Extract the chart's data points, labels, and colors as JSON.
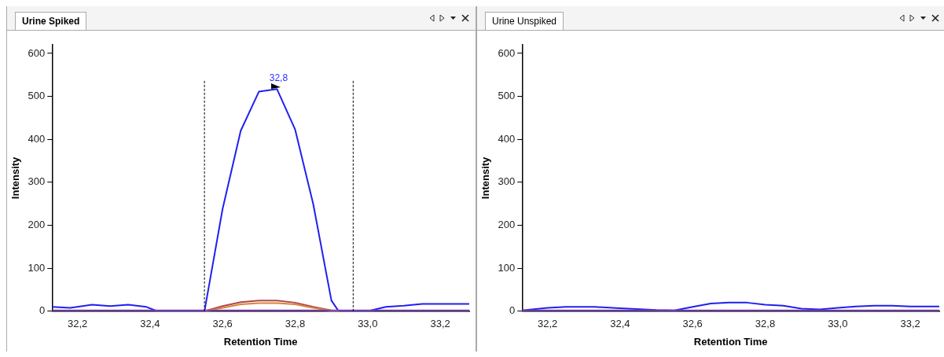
{
  "chart_data": [
    {
      "type": "line",
      "title": "Urine Spiked",
      "xlabel": "Retention Time",
      "ylabel": "Intensity",
      "xlim": [
        32.13,
        33.28
      ],
      "ylim": [
        0,
        620
      ],
      "xticks": [
        {
          "value": 32.2,
          "label": "32,2"
        },
        {
          "value": 32.4,
          "label": "32,4"
        },
        {
          "value": 32.6,
          "label": "32,6"
        },
        {
          "value": 32.8,
          "label": "32,8"
        },
        {
          "value": 33.0,
          "label": "33,0"
        },
        {
          "value": 33.2,
          "label": "33,2"
        }
      ],
      "yticks": [
        0,
        100,
        200,
        300,
        400,
        500,
        600
      ],
      "series": [
        {
          "color": "#8040c0",
          "x": [
            32.13,
            32.55,
            32.9,
            33.28
          ],
          "values": [
            2,
            2,
            2,
            2
          ]
        },
        {
          "color": "#d8843c",
          "x": [
            32.55,
            32.6,
            32.65,
            32.7,
            32.75,
            32.8,
            32.85,
            32.9,
            32.92
          ],
          "values": [
            0,
            8,
            16,
            19,
            19,
            16,
            8,
            1,
            0
          ]
        },
        {
          "color": "#b04848",
          "x": [
            32.55,
            32.6,
            32.65,
            32.7,
            32.75,
            32.8,
            32.85,
            32.9,
            32.92
          ],
          "values": [
            0,
            12,
            21,
            25,
            25,
            20,
            10,
            2,
            0
          ]
        },
        {
          "color": "#2020f0",
          "x": [
            32.13,
            32.18,
            32.24,
            32.29,
            32.34,
            32.39,
            32.42,
            32.55,
            32.6,
            32.65,
            32.7,
            32.75,
            32.8,
            32.85,
            32.9,
            32.92,
            33.0,
            33.05,
            33.1,
            33.15,
            33.28
          ],
          "values": [
            10,
            8,
            15,
            12,
            15,
            10,
            0,
            0,
            238,
            420,
            511,
            517,
            423,
            249,
            25,
            0,
            0,
            10,
            13,
            17,
            17
          ]
        }
      ],
      "ref_lines": [
        {
          "axis": "x",
          "value": 32.55,
          "line_style": "dashed",
          "color": "#000000"
        },
        {
          "axis": "x",
          "value": 32.96,
          "line_style": "dashed",
          "color": "#000000"
        }
      ],
      "annotations": [
        {
          "text": "32,8",
          "x": 32.75,
          "y": 517
        }
      ]
    },
    {
      "type": "line",
      "title": "Urine Unspiked",
      "xlabel": "Retention Time",
      "ylabel": "Intensity",
      "xlim": [
        32.13,
        33.28
      ],
      "ylim": [
        0,
        620
      ],
      "xticks": [
        {
          "value": 32.2,
          "label": "32,2"
        },
        {
          "value": 32.4,
          "label": "32,4"
        },
        {
          "value": 32.6,
          "label": "32,6"
        },
        {
          "value": 32.8,
          "label": "32,8"
        },
        {
          "value": 33.0,
          "label": "33,0"
        },
        {
          "value": 33.2,
          "label": "33,2"
        }
      ],
      "yticks": [
        0,
        100,
        200,
        300,
        400,
        500,
        600
      ],
      "series": [
        {
          "color": "#8040c0",
          "x": [
            32.13,
            32.55,
            32.9,
            33.28
          ],
          "values": [
            2,
            2,
            2,
            2
          ]
        },
        {
          "color": "#2020f0",
          "x": [
            32.13,
            32.2,
            32.25,
            32.33,
            32.4,
            32.5,
            32.55,
            32.6,
            32.65,
            32.7,
            32.75,
            32.8,
            32.85,
            32.9,
            32.95,
            33.0,
            33.05,
            33.1,
            33.15,
            33.2,
            33.28
          ],
          "values": [
            2,
            8,
            10,
            10,
            7,
            3,
            2,
            10,
            18,
            20,
            20,
            15,
            13,
            6,
            4,
            8,
            11,
            13,
            13,
            11,
            11
          ]
        }
      ]
    }
  ]
}
